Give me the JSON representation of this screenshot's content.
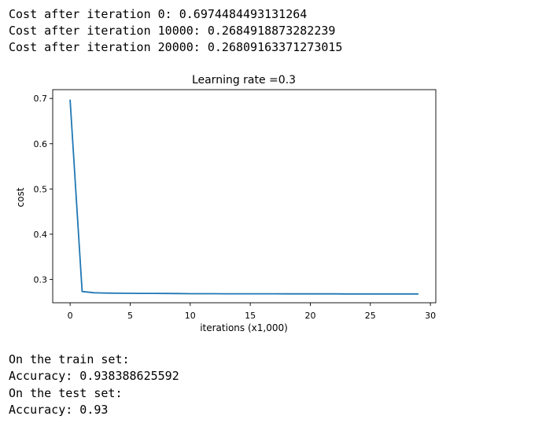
{
  "log": {
    "lines": [
      "Cost after iteration 0: 0.6974484493131264",
      "Cost after iteration 10000: 0.2684918873282239",
      "Cost after iteration 20000: 0.26809163371273015"
    ]
  },
  "results": {
    "train_label": "On the train set:",
    "train_accuracy": "Accuracy: 0.938388625592",
    "test_label": "On the test set:",
    "test_accuracy": "Accuracy: 0.93"
  },
  "chart_data": {
    "type": "line",
    "title": "Learning rate =0.3",
    "xlabel": "iterations (x1,000)",
    "ylabel": "cost",
    "xlim": [
      -1.45,
      30.45
    ],
    "ylim": [
      0.2485,
      0.7195
    ],
    "xticks": [
      0,
      5,
      10,
      15,
      20,
      25,
      30
    ],
    "yticks": [
      0.3,
      0.4,
      0.5,
      0.6,
      0.7
    ],
    "grid": false,
    "color": "#1f77b4",
    "series": [
      {
        "x": [
          0,
          1,
          2,
          3,
          4,
          5,
          6,
          7,
          8,
          9,
          10,
          11,
          12,
          13,
          14,
          15,
          16,
          17,
          18,
          19,
          20,
          21,
          22,
          23,
          24,
          25,
          26,
          27,
          28,
          29
        ],
        "values": [
          0.6974,
          0.2734,
          0.2705,
          0.2699,
          0.2696,
          0.2694,
          0.2692,
          0.2691,
          0.269,
          0.2689,
          0.2685,
          0.2685,
          0.2685,
          0.2684,
          0.2684,
          0.2684,
          0.2683,
          0.2683,
          0.2682,
          0.2682,
          0.2681,
          0.2681,
          0.2681,
          0.268,
          0.268,
          0.268,
          0.268,
          0.2679,
          0.2679,
          0.2679
        ]
      }
    ]
  }
}
